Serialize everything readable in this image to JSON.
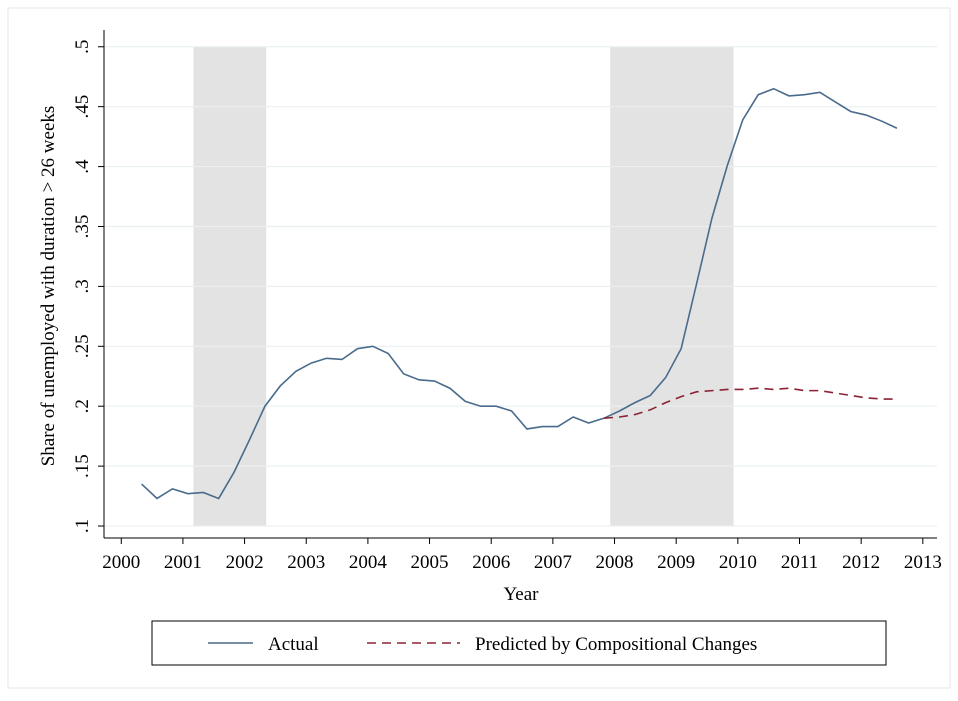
{
  "chart_data": {
    "type": "line",
    "xlabel": "Year",
    "ylabel": "Share of unemployed with duration > 26 weeks",
    "xlim": [
      1999.72,
      2013.23
    ],
    "ylim": [
      0.09,
      0.514
    ],
    "xticks": [
      2000,
      2001,
      2002,
      2003,
      2004,
      2005,
      2006,
      2007,
      2008,
      2009,
      2010,
      2011,
      2012,
      2013
    ],
    "yticks": [
      {
        "value": 0.1,
        "label": ".1"
      },
      {
        "value": 0.15,
        "label": ".15"
      },
      {
        "value": 0.2,
        "label": ".2"
      },
      {
        "value": 0.25,
        "label": ".25"
      },
      {
        "value": 0.3,
        "label": ".3"
      },
      {
        "value": 0.35,
        "label": ".35"
      },
      {
        "value": 0.4,
        "label": ".4"
      },
      {
        "value": 0.45,
        "label": ".45"
      },
      {
        "value": 0.5,
        "label": ".5"
      }
    ],
    "grid": true,
    "shaded_regions": [
      [
        2001.17,
        2002.35
      ],
      [
        2007.93,
        2009.93
      ]
    ],
    "x": [
      2000.33,
      2000.58,
      2000.83,
      2001.08,
      2001.33,
      2001.58,
      2001.83,
      2002.08,
      2002.33,
      2002.58,
      2002.83,
      2003.08,
      2003.33,
      2003.58,
      2003.83,
      2004.08,
      2004.33,
      2004.58,
      2004.83,
      2005.08,
      2005.33,
      2005.58,
      2005.83,
      2006.08,
      2006.33,
      2006.58,
      2006.83,
      2007.08,
      2007.33,
      2007.58,
      2007.83,
      2008.08,
      2008.33,
      2008.58,
      2008.83,
      2009.08,
      2009.33,
      2009.58,
      2009.83,
      2010.08,
      2010.33,
      2010.58,
      2010.83,
      2011.08,
      2011.33,
      2011.58,
      2011.83,
      2012.08,
      2012.33,
      2012.58
    ],
    "series": [
      {
        "name": "Actual",
        "color": "#4a6b8c",
        "dash": false,
        "values": [
          0.135,
          0.123,
          0.131,
          0.127,
          0.128,
          0.123,
          0.145,
          0.172,
          0.2,
          0.217,
          0.229,
          0.236,
          0.24,
          0.239,
          0.248,
          0.25,
          0.244,
          0.227,
          0.222,
          0.221,
          0.215,
          0.204,
          0.2,
          0.2,
          0.196,
          0.181,
          0.183,
          0.183,
          0.191,
          0.186,
          0.19,
          0.196,
          0.203,
          0.209,
          0.224,
          0.248,
          0.302,
          0.357,
          0.401,
          0.439,
          0.46,
          0.465,
          0.459,
          0.46,
          0.462,
          0.454,
          0.446,
          0.443,
          0.438,
          0.432
        ]
      },
      {
        "name": "Predicted by Compositional Changes",
        "color": "#8b2335",
        "dash": true,
        "values": [
          null,
          null,
          null,
          null,
          null,
          null,
          null,
          null,
          null,
          null,
          null,
          null,
          null,
          null,
          null,
          null,
          null,
          null,
          null,
          null,
          null,
          null,
          null,
          null,
          null,
          null,
          null,
          null,
          null,
          null,
          0.19,
          0.191,
          0.193,
          0.197,
          0.203,
          0.208,
          0.212,
          0.213,
          0.214,
          0.214,
          0.215,
          0.214,
          0.215,
          0.213,
          0.213,
          0.211,
          0.209,
          0.207,
          0.206,
          0.206
        ]
      }
    ]
  }
}
